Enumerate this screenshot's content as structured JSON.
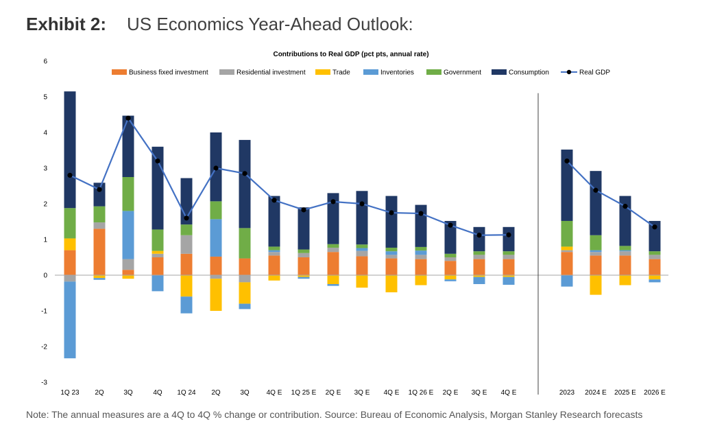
{
  "header": {
    "exhibit_label": "Exhibit 2:",
    "exhibit_title": "US Economics Year-Ahead Outlook:"
  },
  "footer": {
    "note": "Note: The annual measures are a 4Q to 4Q % change or contribution. Source: Bureau of Economic Analysis, Morgan Stanley Research forecasts"
  },
  "chart_data": {
    "type": "bar",
    "stacked": true,
    "title": "Contributions to Real GDP (pct pts, annual rate)",
    "xlabel": "",
    "ylabel": "",
    "ylim": [
      -3,
      6
    ],
    "yticks": [
      -3,
      -2,
      -1,
      0,
      1,
      2,
      3,
      4,
      5,
      6
    ],
    "legend_position": "top",
    "grid": false,
    "vertical_divider_after": "4Q E",
    "categories": [
      "1Q 23",
      "2Q",
      "3Q",
      "4Q",
      "1Q 24",
      "2Q",
      "3Q",
      "4Q E",
      "1Q 25 E",
      "2Q E",
      "3Q E",
      "4Q E",
      "1Q 26 E",
      "2Q E",
      "3Q E",
      "4Q E",
      "2023",
      "2024 E",
      "2025 E",
      "2026 E"
    ],
    "series": [
      {
        "name": "Business fixed investment",
        "color": "#ed7d31",
        "values": [
          0.7,
          1.3,
          0.15,
          0.5,
          0.6,
          0.52,
          0.47,
          0.55,
          0.5,
          0.65,
          0.53,
          0.47,
          0.45,
          0.4,
          0.45,
          0.45,
          0.65,
          0.55,
          0.55,
          0.45
        ]
      },
      {
        "name": "Residential investment",
        "color": "#a5a5a5",
        "values": [
          -0.18,
          0.18,
          0.3,
          0.1,
          0.52,
          -0.1,
          -0.2,
          0.1,
          0.12,
          0.12,
          0.15,
          0.1,
          0.12,
          0.1,
          0.12,
          0.12,
          0.05,
          0.1,
          0.12,
          0.12
        ]
      },
      {
        "name": "Trade",
        "color": "#ffc000",
        "values": [
          0.33,
          -0.08,
          -0.1,
          0.08,
          -0.6,
          -0.9,
          -0.6,
          -0.15,
          -0.05,
          -0.25,
          -0.35,
          -0.48,
          -0.28,
          -0.12,
          -0.05,
          -0.05,
          0.1,
          -0.55,
          -0.28,
          -0.12
        ]
      },
      {
        "name": "Inventories",
        "color": "#5b9bd5",
        "values": [
          -2.15,
          -0.05,
          1.35,
          -0.45,
          -0.47,
          1.05,
          -0.15,
          0.05,
          -0.05,
          -0.05,
          0.08,
          0.1,
          0.12,
          -0.05,
          -0.2,
          -0.22,
          -0.32,
          0.05,
          0.03,
          -0.08
        ]
      },
      {
        "name": "Government",
        "color": "#70ad47",
        "values": [
          0.85,
          0.45,
          0.95,
          0.6,
          0.3,
          0.5,
          0.85,
          0.1,
          0.1,
          0.1,
          0.1,
          0.1,
          0.1,
          0.1,
          0.1,
          0.1,
          0.72,
          0.42,
          0.12,
          0.1
        ]
      },
      {
        "name": "Consumption",
        "color": "#203864",
        "values": [
          3.27,
          0.66,
          1.72,
          2.32,
          1.3,
          1.93,
          2.47,
          1.42,
          1.18,
          1.43,
          1.5,
          1.45,
          1.18,
          0.92,
          0.68,
          0.68,
          2.0,
          1.8,
          1.4,
          0.85
        ]
      },
      {
        "name": "Real GDP",
        "color": "#4472c4",
        "kind": "line",
        "values": [
          2.8,
          2.4,
          4.4,
          3.2,
          1.6,
          3.0,
          2.85,
          2.1,
          1.83,
          2.06,
          2.0,
          1.75,
          1.73,
          1.4,
          1.12,
          1.13,
          3.2,
          2.38,
          1.93,
          1.35
        ]
      }
    ]
  }
}
